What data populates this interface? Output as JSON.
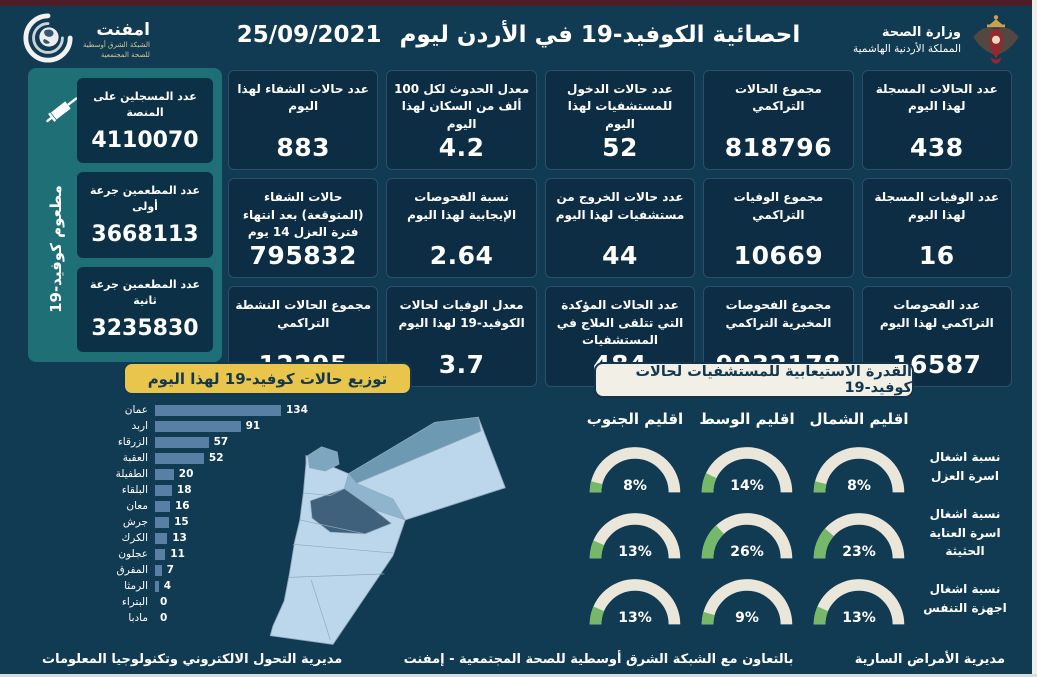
{
  "colors": {
    "background": "#113A53",
    "card": "#0C2D43",
    "sidebar_teal": "#1E7076",
    "banner_yellow": "#E9C54B",
    "banner_light": "#F2EFE6",
    "bar": "#5A7FA4",
    "gauge_track": "#EAE6D9",
    "gauge_fill": "#76B869",
    "top_strip": "#4E1E28"
  },
  "header": {
    "title": "احصائية الكوفيد-19 في الأردن ليوم",
    "date": "25/09/2021",
    "ministry_line1": "وزارة الصحة",
    "ministry_line2": "المملكة الأردنية الهاشمية",
    "logo_name": "امفنت",
    "logo_sub1": "الشبكة الشرق أوسطية",
    "logo_sub2": "للصحة المجتمعية"
  },
  "sidebar": {
    "vertical_label": "مطعوم كوفيد-19",
    "cards": [
      {
        "label": "عدد المسجلين على المنصة",
        "value": "4110070"
      },
      {
        "label": "عدد المطعمين جرعة أولى",
        "value": "3668113"
      },
      {
        "label": "عدد المطعمين جرعة ثانية",
        "value": "3235830"
      }
    ]
  },
  "stats": {
    "cards": [
      {
        "label": "عدد الحالات المسجلة لهذا اليوم",
        "value": "438"
      },
      {
        "label": "مجموع الحالات التراكمي",
        "value": "818796"
      },
      {
        "label": "عدد حالات الدخول للمستشفيات لهذا اليوم",
        "value": "52"
      },
      {
        "label": "معدل الحدوث لكل 100 ألف من السكان لهذا اليوم",
        "value": "4.2"
      },
      {
        "label": "عدد حالات الشفاء لهذا اليوم",
        "value": "883"
      },
      {
        "label": "عدد الوفيات المسجلة لهذا اليوم",
        "value": "16"
      },
      {
        "label": "مجموع الوفيات التراكمي",
        "value": "10669"
      },
      {
        "label": "عدد حالات الخروج من مستشفيات لهذا اليوم",
        "value": "44"
      },
      {
        "label": "نسبة الفحوصات الإيجابية لهذا اليوم",
        "value": "2.64"
      },
      {
        "label": "حالات الشفاء (المتوقعة) بعد انتهاء فترة العزل 14 يوم",
        "value": "795832"
      },
      {
        "label": "عدد الفحوصات التراكمي لهذا اليوم",
        "value": "16587"
      },
      {
        "label": "مجموع الفحوصات المخبرية التراكمي",
        "value": "9932178"
      },
      {
        "label": "عدد الحالات المؤكدة التي تتلقى العلاج في المستشفيات",
        "value": "484"
      },
      {
        "label": "معدل الوفيات لحالات الكوفيد-19 لهذا اليوم",
        "value": "3.7"
      },
      {
        "label": "مجموع الحالات النشطة التراكمي",
        "value": "12295"
      }
    ]
  },
  "footer": {
    "right": "مديرية الأمراض السارية",
    "center": "بالتعاون مع الشبكة الشرق أوسطية للصحة المجتمعية - إمفنت",
    "left": "مديرية التحول الالكتروني وتكنولوجيا المعلومات"
  },
  "chart_data": [
    {
      "type": "bar",
      "orientation": "horizontal",
      "title": "توزيع حالات كوفيد-19 لهذا اليوم",
      "categories": [
        "عمان",
        "اربد",
        "الزرقاء",
        "العقبة",
        "الطفيلة",
        "البلقاء",
        "معان",
        "جرش",
        "الكرك",
        "عجلون",
        "المفرق",
        "الرمثا",
        "البتراء",
        "مادبا"
      ],
      "values": [
        134,
        91,
        57,
        52,
        20,
        18,
        16,
        15,
        13,
        11,
        7,
        4,
        0,
        0
      ],
      "xlim": [
        0,
        140
      ],
      "bar_color": "#5A7FA4"
    },
    {
      "type": "gauge",
      "title": "القدرة الاستيعابية للمستشفيات لحالات كوفيد-19",
      "regions": [
        "اقليم الشمال",
        "اقليم الوسط",
        "اقليم الجنوب"
      ],
      "rows": [
        {
          "label": "نسبة اشغال اسرة العزل",
          "values": [
            8,
            14,
            8
          ]
        },
        {
          "label": "نسبة اشغال اسرة العناية الحثيثة",
          "values": [
            23,
            26,
            13
          ]
        },
        {
          "label": "نسبة اشغال اجهزة التنفس",
          "values": [
            13,
            9,
            13
          ]
        }
      ],
      "unit": "%",
      "range": [
        0,
        100
      ],
      "track_color": "#EAE6D9",
      "fill_color": "#76B869"
    }
  ]
}
